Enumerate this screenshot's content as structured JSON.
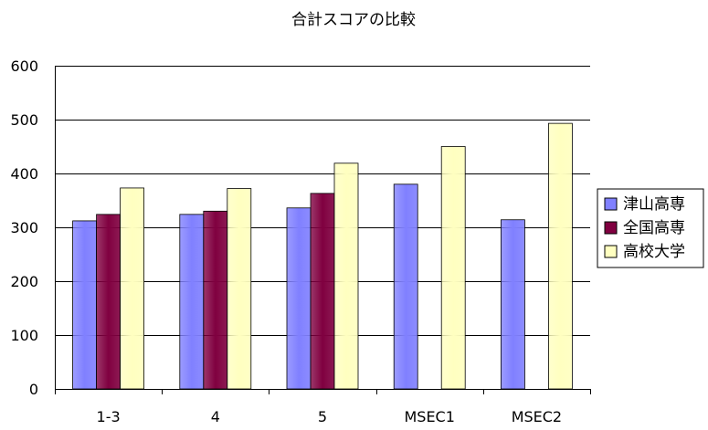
{
  "chart_data": {
    "type": "bar",
    "title": "合計スコアの比較",
    "categories": [
      "1-3",
      "4",
      "5",
      "MSEC1",
      "MSEC2"
    ],
    "series": [
      {
        "name": "津山高専",
        "color": "#8080ff",
        "values": [
          312,
          324,
          336,
          380,
          314
        ]
      },
      {
        "name": "全国高専",
        "color": "#800040",
        "values": [
          324,
          330,
          363,
          null,
          null
        ]
      },
      {
        "name": "高校大学",
        "color": "#ffffc0",
        "values": [
          373,
          372,
          419,
          450,
          493
        ]
      }
    ],
    "ylim": [
      0,
      600
    ],
    "yticks": [
      0,
      100,
      200,
      300,
      400,
      500,
      600
    ],
    "xlabel": "",
    "ylabel": "",
    "grid": true,
    "legend": "right"
  }
}
